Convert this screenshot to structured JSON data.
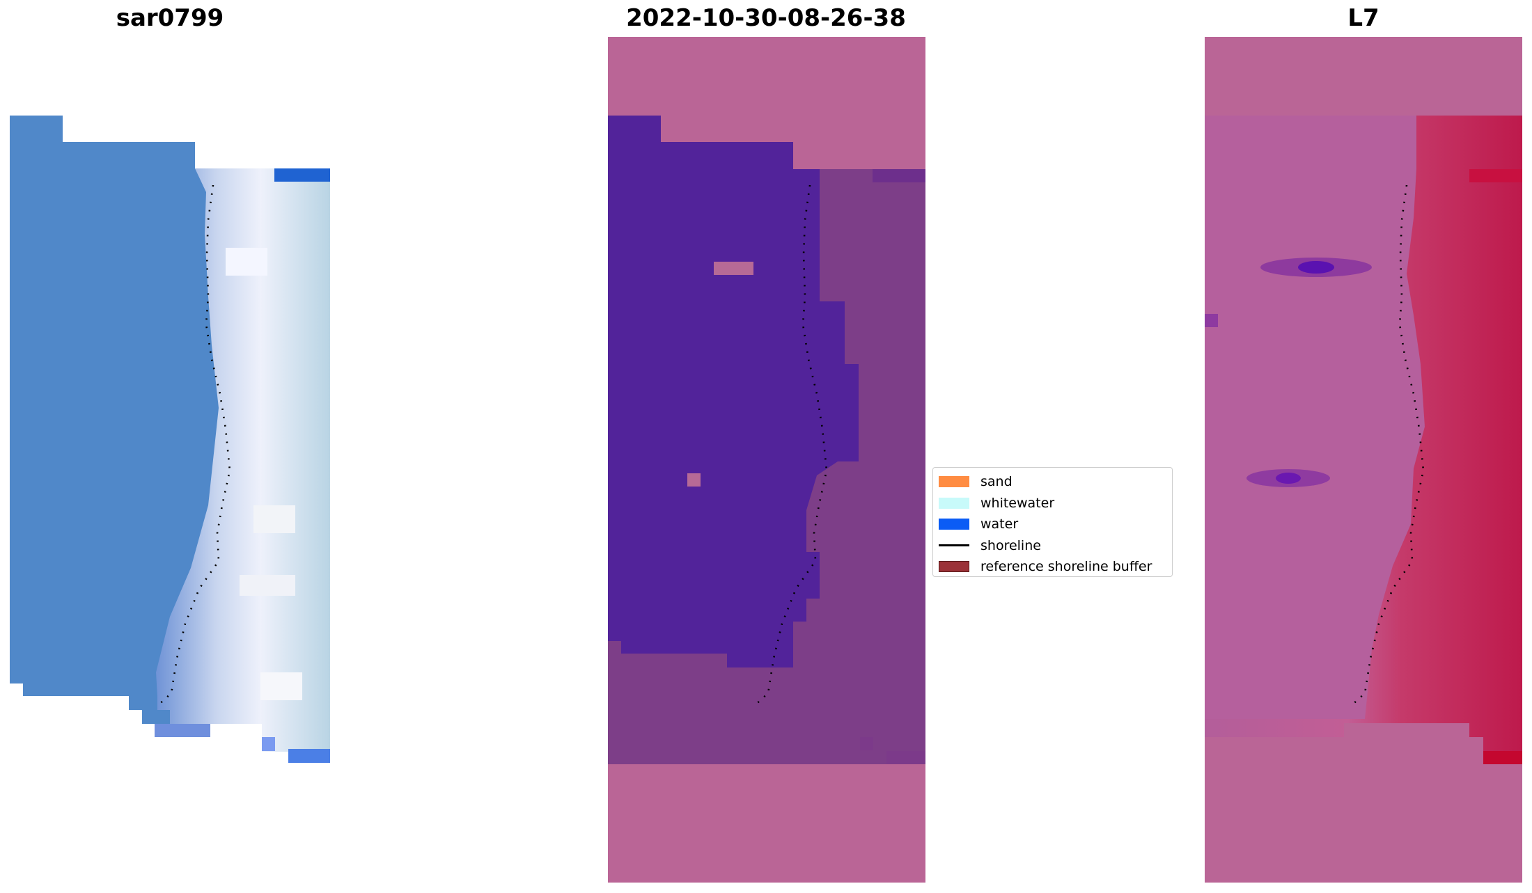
{
  "panels": [
    {
      "title": "sar0799"
    },
    {
      "title": "2022-10-30-08-26-38"
    },
    {
      "title": "L7"
    }
  ],
  "legend": {
    "items": [
      {
        "label": "sand",
        "color": "#ff8c42",
        "kind": "patch"
      },
      {
        "label": "whitewater",
        "color": "#c8fafa",
        "kind": "patch"
      },
      {
        "label": "water",
        "color": "#0b5cf5",
        "kind": "patch"
      },
      {
        "label": "shoreline",
        "color": "#000000",
        "kind": "line"
      },
      {
        "label": "reference shoreline buffer",
        "color": "#9b3238",
        "kind": "outlined-patch"
      }
    ]
  },
  "colors": {
    "water_class": "#52239a",
    "mask_background": "#ba6596",
    "rgb_water": "#4f89c8",
    "index_land": "#be1a4c"
  }
}
